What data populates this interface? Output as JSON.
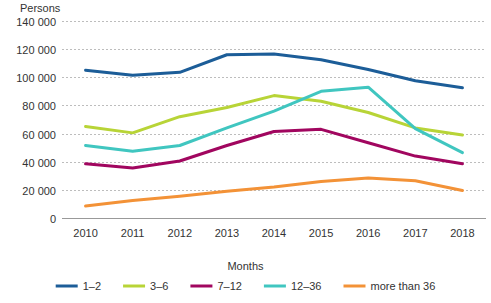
{
  "chart_data": {
    "type": "line",
    "y_label": "Persons",
    "x_label": "Months",
    "categories": [
      "2010",
      "2011",
      "2012",
      "2013",
      "2014",
      "2015",
      "2016",
      "2017",
      "2018"
    ],
    "series": [
      {
        "name": "1–2",
        "color": "#1c5d98",
        "values": [
          105000,
          101500,
          103500,
          116000,
          116500,
          112500,
          105500,
          97500,
          92500
        ]
      },
      {
        "name": "3–6",
        "color": "#b8d437",
        "values": [
          65000,
          60500,
          72000,
          78500,
          87000,
          83000,
          75000,
          64000,
          59000
        ]
      },
      {
        "name": "7–12",
        "color": "#a1065f",
        "values": [
          38500,
          35500,
          40500,
          51500,
          61500,
          63000,
          53500,
          44000,
          38500
        ]
      },
      {
        "name": "12–36",
        "color": "#40c6c0",
        "values": [
          51500,
          47500,
          51500,
          64000,
          76000,
          90000,
          93000,
          63500,
          46500
        ]
      },
      {
        "name": "more than 36",
        "color": "#f39237",
        "values": [
          8500,
          12500,
          15500,
          19000,
          22000,
          26000,
          28500,
          26500,
          19500
        ]
      }
    ],
    "ylim": [
      0,
      140000
    ],
    "yticks": [
      {
        "value": 0,
        "label": "0"
      },
      {
        "value": 20000,
        "label": "20 000"
      },
      {
        "value": 40000,
        "label": "40 000"
      },
      {
        "value": 60000,
        "label": "60 000"
      },
      {
        "value": 80000,
        "label": "80 000"
      },
      {
        "value": 100000,
        "label": "100 000"
      },
      {
        "value": 120000,
        "label": "120 000"
      },
      {
        "value": 140000,
        "label": "140 000"
      }
    ],
    "grid": true,
    "legend": "bottom"
  }
}
